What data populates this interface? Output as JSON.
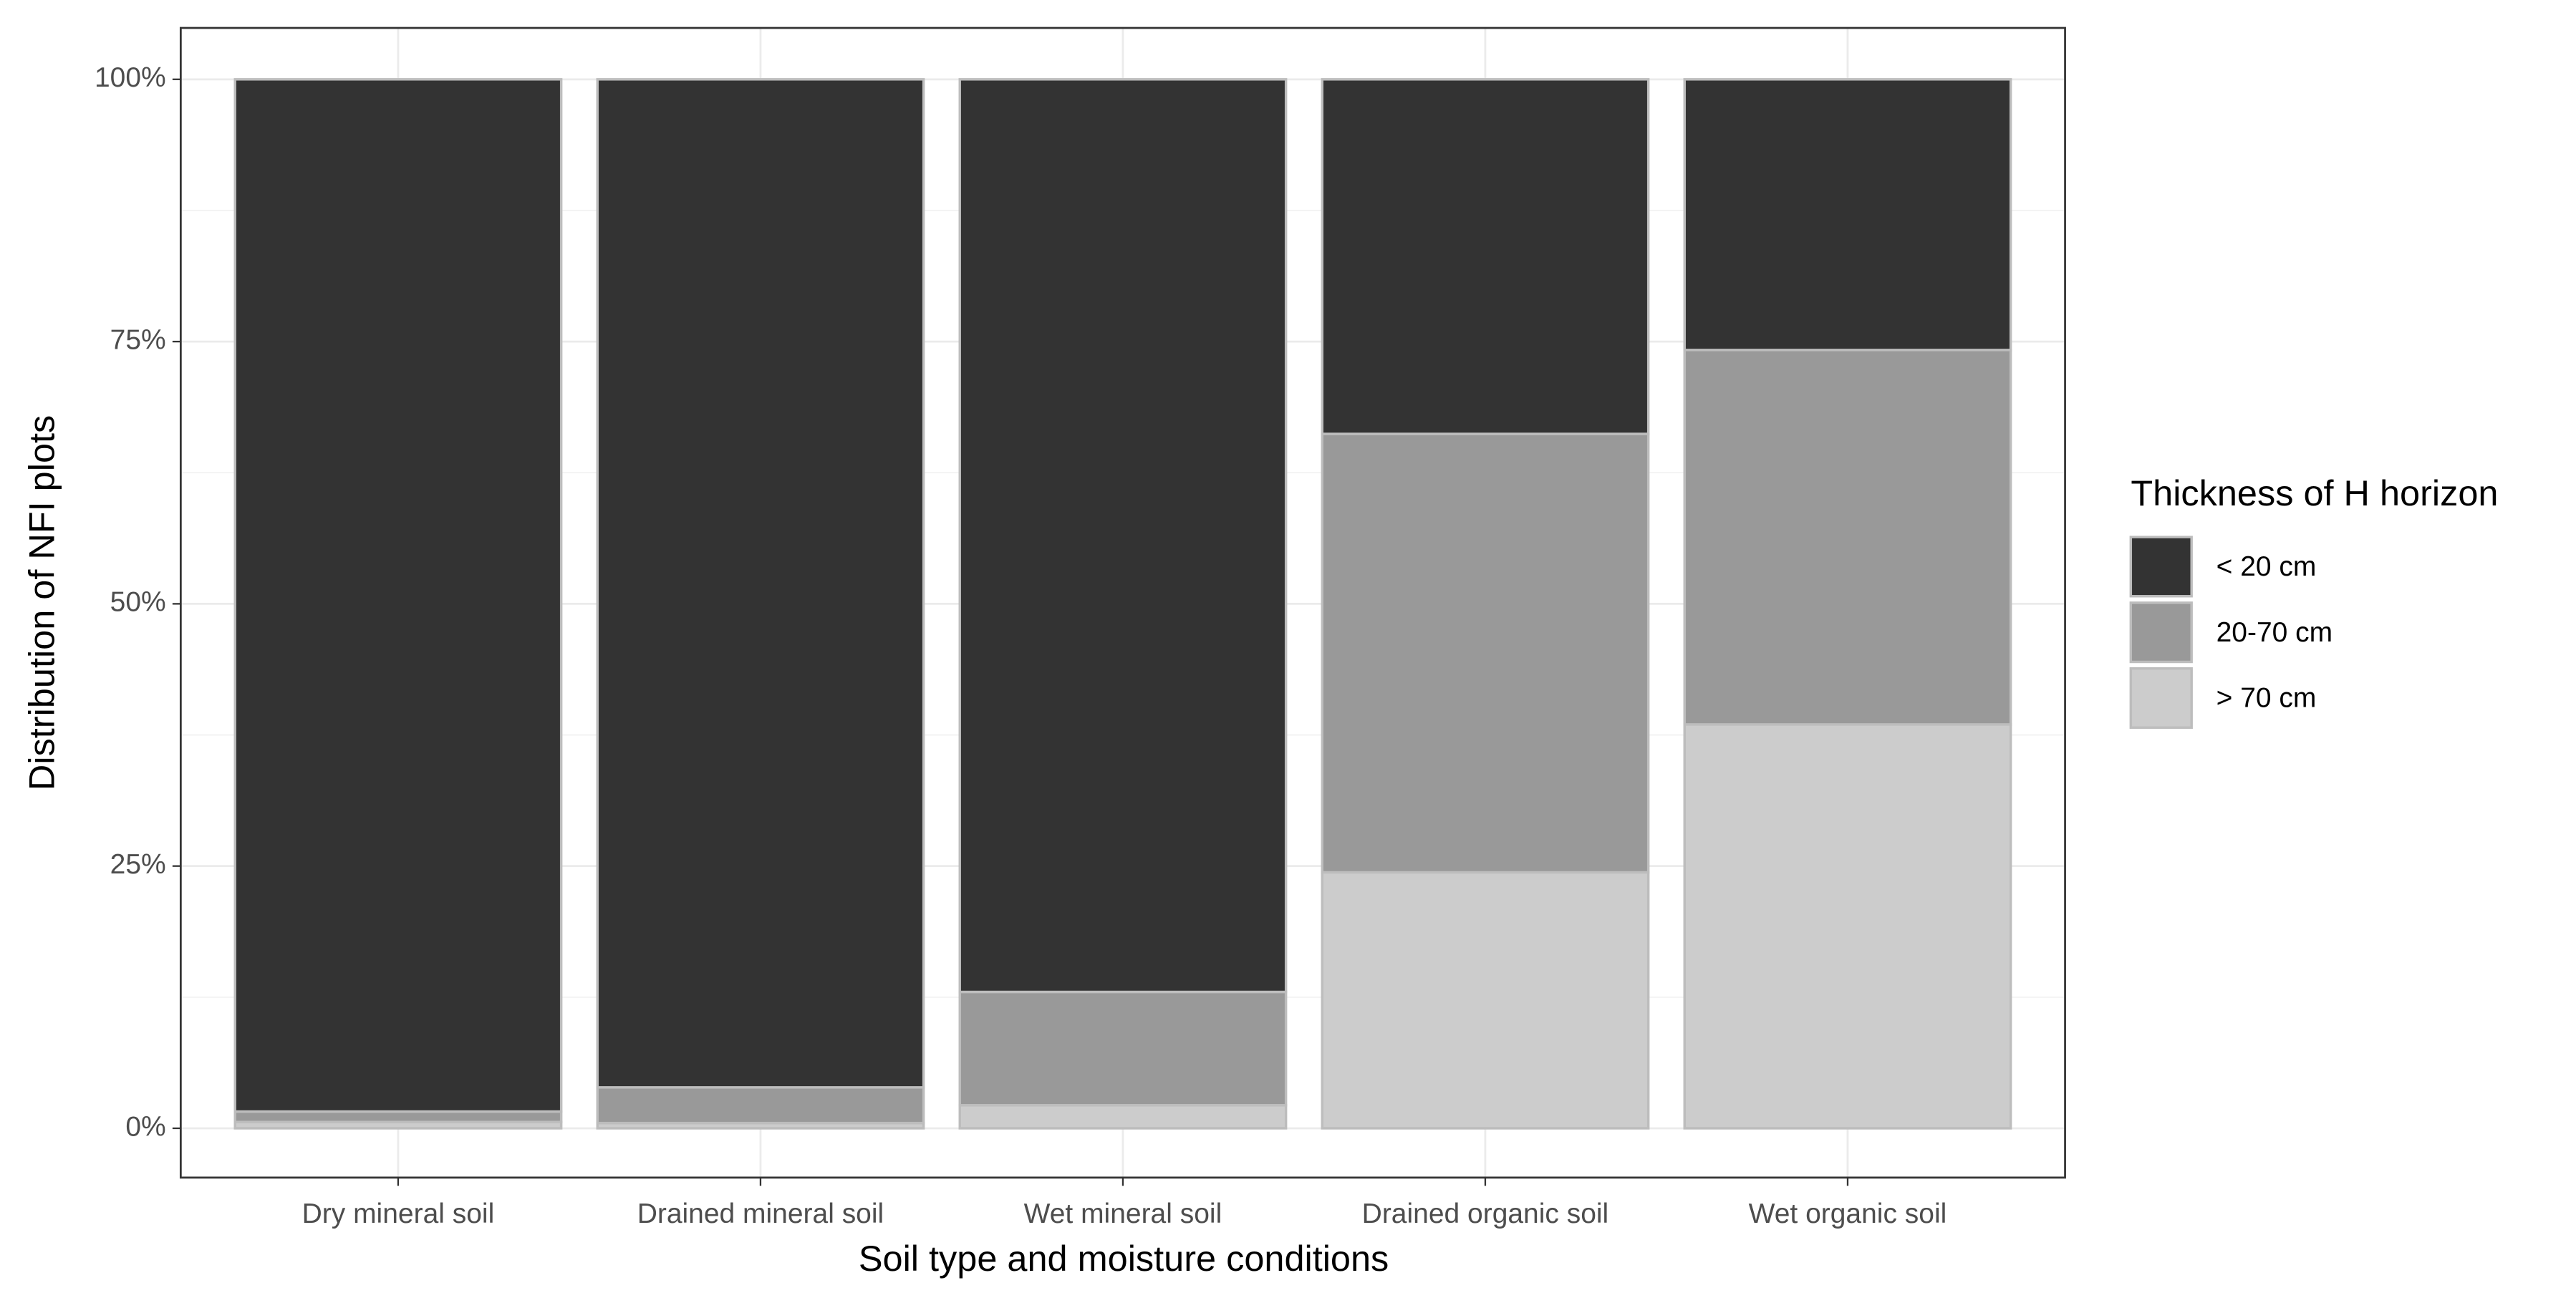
{
  "chart_data": {
    "type": "stacked_bar",
    "x_label": "Soil type and moisture conditions",
    "y_label": "Distribution of NFI plots",
    "legend_title": "Thickness of H horizon",
    "legend_position": "right",
    "categories": [
      "Dry mineral soil",
      "Drained mineral soil",
      "Wet mineral soil",
      "Drained organic soil",
      "Wet organic soil"
    ],
    "series": [
      {
        "name": "< 20 cm",
        "color": "#333333",
        "values": [
          98.4,
          96.1,
          87.0,
          33.8,
          25.8
        ]
      },
      {
        "name": "20-70 cm",
        "color": "#999999",
        "values": [
          1.0,
          3.4,
          10.8,
          41.8,
          35.7
        ]
      },
      {
        "name": "> 70 cm",
        "color": "#cccccc",
        "values": [
          0.6,
          0.5,
          2.2,
          24.4,
          38.5
        ]
      }
    ],
    "ylim": [
      -4.7,
      104.9
    ],
    "yticks": [
      {
        "value": 0,
        "label": "0%"
      },
      {
        "value": 25,
        "label": "25%"
      },
      {
        "value": 50,
        "label": "50%"
      },
      {
        "value": 75,
        "label": "75%"
      },
      {
        "value": 100,
        "label": "100%"
      }
    ],
    "grid": true
  }
}
